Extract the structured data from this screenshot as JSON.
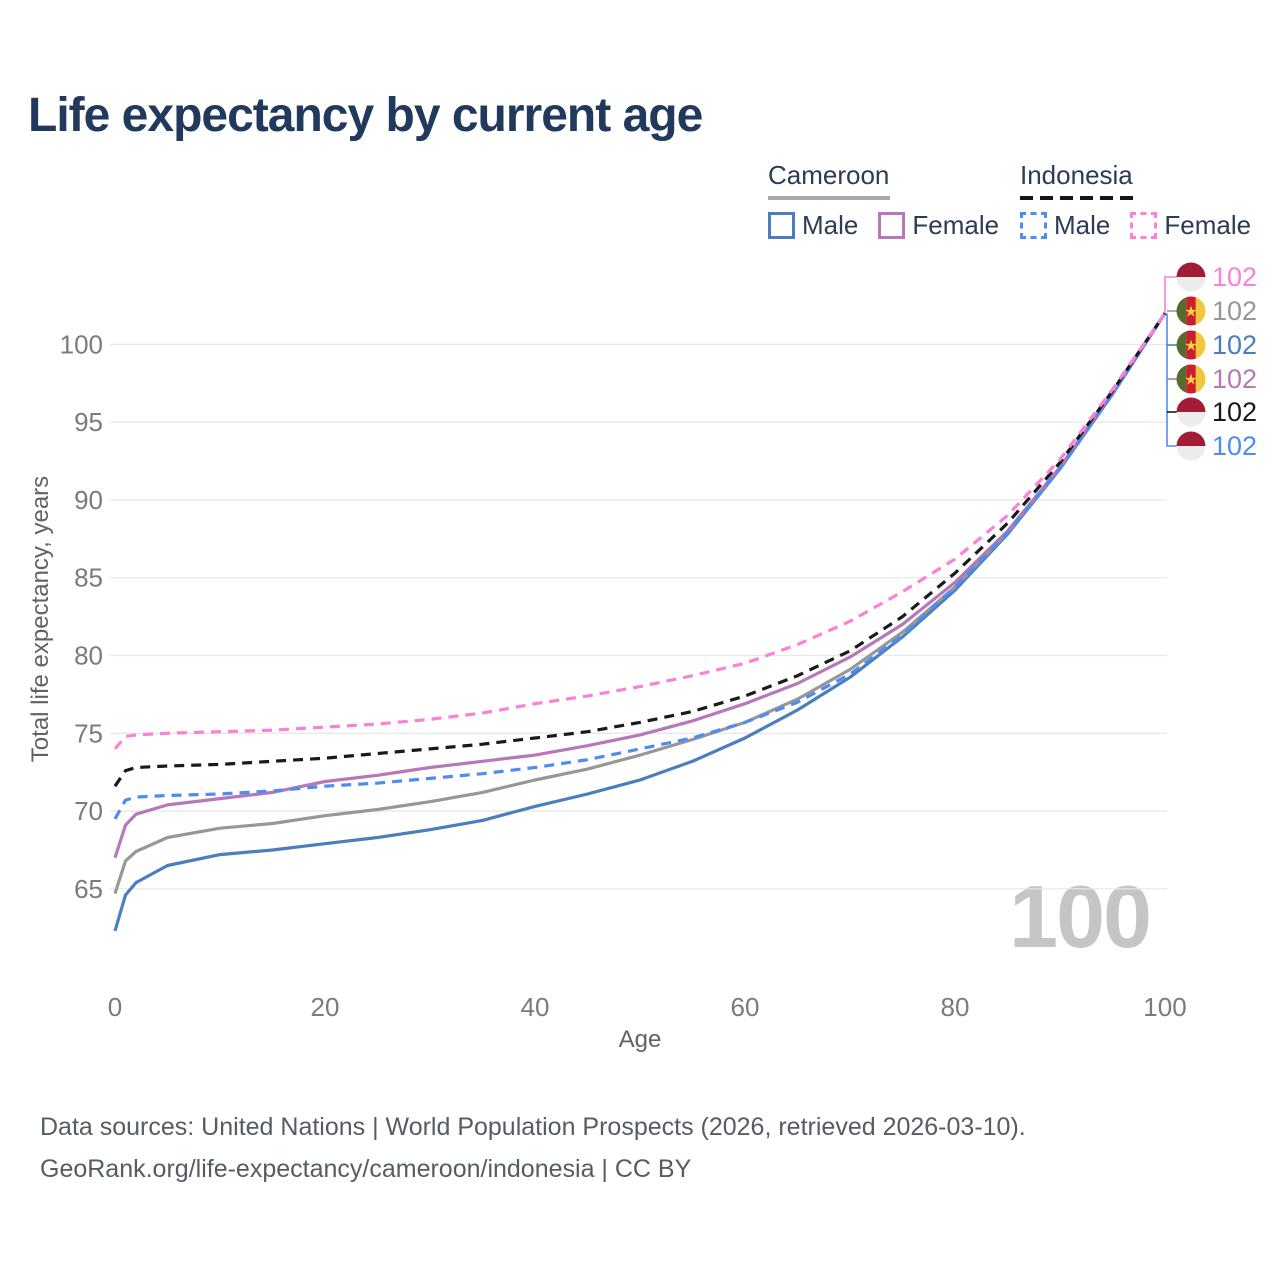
{
  "header": {
    "title": "Life expectancy by current age"
  },
  "legend": {
    "cameroon": {
      "label": "Cameroon",
      "male_label": "Male",
      "female_label": "Female"
    },
    "indonesia": {
      "label": "Indonesia",
      "male_label": "Male",
      "female_label": "Female"
    }
  },
  "footer": {
    "line1": "Data sources: United Nations | World Population Prospects (2026, retrieved 2026-03-10).",
    "line2": "GeoRank.org/life-expectancy/cameroon/indonesia | CC BY"
  },
  "chart_data": {
    "type": "line",
    "title": "Life expectancy by current age",
    "xlabel": "Age",
    "ylabel": "Total life expectancy, years",
    "watermark": "100",
    "xlim": [
      0,
      100
    ],
    "ylim": [
      61,
      103
    ],
    "x_ticks": [
      0,
      20,
      40,
      60,
      80,
      100
    ],
    "y_ticks": [
      65,
      70,
      75,
      80,
      85,
      90,
      95,
      100
    ],
    "grid": "horizontal",
    "legend_position": "top-right",
    "x": [
      0,
      1,
      2,
      5,
      10,
      15,
      20,
      25,
      30,
      35,
      40,
      45,
      50,
      55,
      60,
      65,
      70,
      75,
      80,
      85,
      90,
      95,
      100
    ],
    "series": [
      {
        "name": "Cameroon Male",
        "country": "cameroon",
        "style": "solid",
        "color": "#4a7ebc",
        "values": [
          62.3,
          64.6,
          65.4,
          66.5,
          67.2,
          67.5,
          67.9,
          68.3,
          68.8,
          69.4,
          70.3,
          71.1,
          72.0,
          73.2,
          74.7,
          76.5,
          78.6,
          81.2,
          84.2,
          87.8,
          92.0,
          96.8,
          102.0
        ]
      },
      {
        "name": "Cameroon",
        "country": "cameroon",
        "style": "solid",
        "color": "#979797",
        "values": [
          64.7,
          66.8,
          67.4,
          68.3,
          68.9,
          69.2,
          69.7,
          70.1,
          70.6,
          71.2,
          72.0,
          72.7,
          73.6,
          74.6,
          75.7,
          77.2,
          79.1,
          81.5,
          84.4,
          87.9,
          92.1,
          96.9,
          102.0
        ]
      },
      {
        "name": "Cameroon Female",
        "country": "cameroon",
        "style": "solid",
        "color": "#b678b8",
        "values": [
          67.0,
          69.1,
          69.8,
          70.4,
          70.8,
          71.2,
          71.9,
          72.3,
          72.8,
          73.2,
          73.6,
          74.2,
          74.9,
          75.8,
          76.9,
          78.2,
          79.9,
          82.0,
          84.7,
          88.0,
          92.1,
          96.9,
          102.0
        ]
      },
      {
        "name": "Indonesia Male",
        "country": "indonesia",
        "style": "dashed",
        "color": "#4e8cf0",
        "values": [
          69.5,
          70.7,
          70.9,
          71.0,
          71.1,
          71.3,
          71.6,
          71.8,
          72.1,
          72.4,
          72.8,
          73.3,
          74.0,
          74.7,
          75.7,
          77.0,
          78.8,
          81.3,
          84.4,
          87.9,
          92.0,
          96.8,
          102.0
        ]
      },
      {
        "name": "Indonesia",
        "country": "indonesia",
        "style": "dashed",
        "color": "#1a1a1a",
        "values": [
          71.6,
          72.6,
          72.8,
          72.9,
          73.0,
          73.2,
          73.4,
          73.7,
          74.0,
          74.3,
          74.7,
          75.1,
          75.7,
          76.4,
          77.4,
          78.7,
          80.3,
          82.5,
          85.3,
          88.5,
          92.4,
          97.0,
          102.0
        ]
      },
      {
        "name": "Indonesia Female",
        "country": "indonesia",
        "style": "dashed",
        "color": "#fb80d9",
        "values": [
          74.0,
          74.8,
          74.9,
          75.0,
          75.1,
          75.2,
          75.4,
          75.6,
          75.9,
          76.3,
          76.9,
          77.4,
          78.0,
          78.7,
          79.5,
          80.7,
          82.2,
          84.1,
          86.2,
          89.0,
          92.6,
          97.1,
          102.0
        ]
      }
    ],
    "end_labels": [
      {
        "value": "102",
        "country": "indonesia",
        "series": "Indonesia Female",
        "color": "#fb80d9"
      },
      {
        "value": "102",
        "country": "cameroon",
        "series": "Cameroon",
        "color": "#979797"
      },
      {
        "value": "102",
        "country": "cameroon",
        "series": "Cameroon Male",
        "color": "#4a7ebc"
      },
      {
        "value": "102",
        "country": "cameroon",
        "series": "Cameroon Female",
        "color": "#b678b8"
      },
      {
        "value": "102",
        "country": "indonesia",
        "series": "Indonesia",
        "color": "#1a1a1a"
      },
      {
        "value": "102",
        "country": "indonesia",
        "series": "Indonesia Male",
        "color": "#4e8cf0"
      }
    ],
    "flag_colors": {
      "indonesia": {
        "top": "#a31c35",
        "bottom": "#ececec"
      },
      "cameroon": {
        "green": "#566c2e",
        "red": "#c8202f",
        "yellow": "#f2c83b",
        "star": "#ffd23f"
      }
    }
  }
}
